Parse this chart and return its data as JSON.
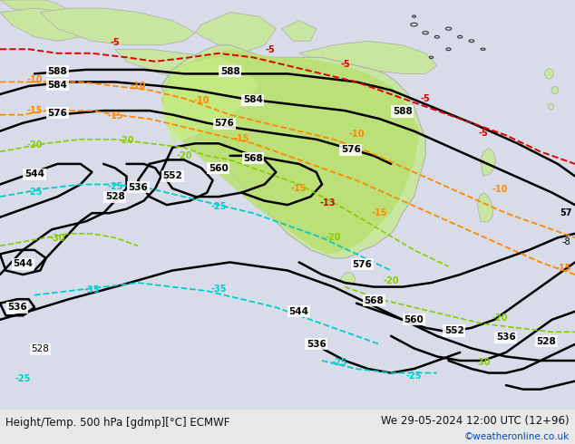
{
  "title_left": "Height/Temp. 500 hPa [gdmp][°C] ECMWF",
  "title_right": "We 29-05-2024 12:00 UTC (12+96)",
  "credit": "©weatheronline.co.uk",
  "bg_color": "#e8e8e8",
  "ocean_color": "#d8dce8",
  "land_color": "#c8e6a0",
  "land_edge": "#aaaaaa",
  "fig_width": 6.34,
  "fig_height": 4.9,
  "dpi": 100,
  "bottom_bar_color": "#ffffff",
  "bottom_text_color": "#111111",
  "credit_color": "#0044bb"
}
